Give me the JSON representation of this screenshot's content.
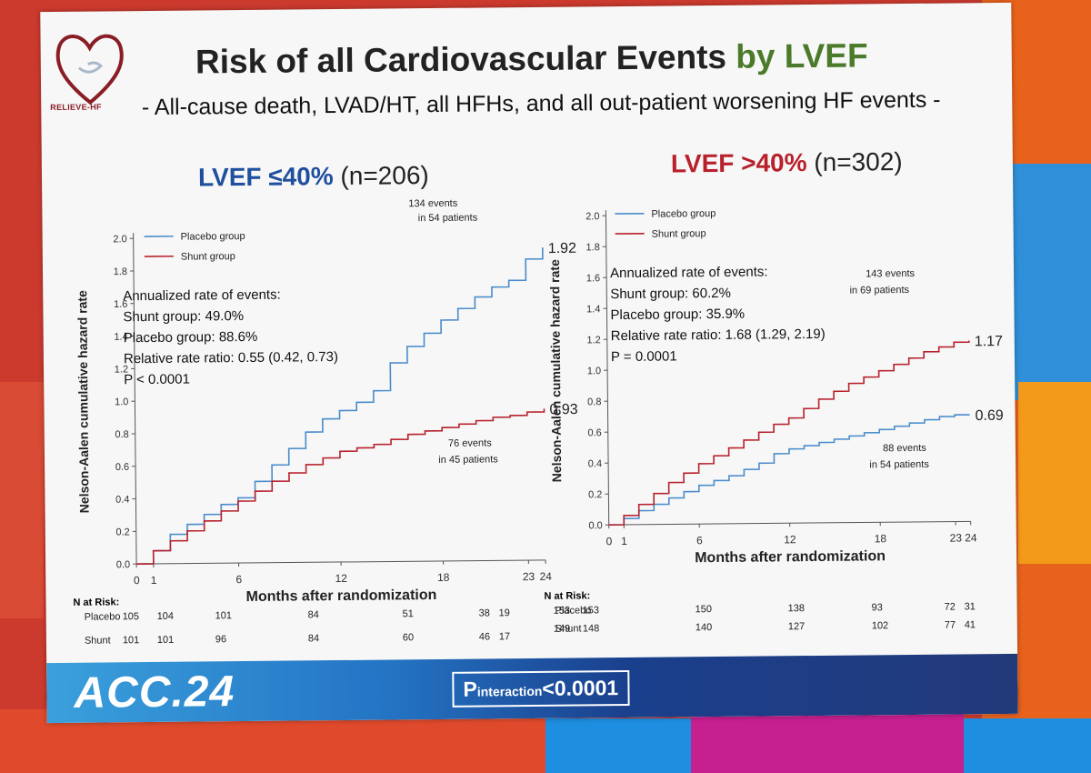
{
  "slide": {
    "logo_text": "RELIEVE-HF",
    "title_main": "Risk of all Cardiovascular Events ",
    "title_highlight": "by LVEF",
    "subtitle": "- All-cause death, LVAD/HT, all HFHs, and all out-patient worsening HF events -",
    "footer_logo": "ACC.24",
    "p_interaction_p": "P",
    "p_interaction_sub": "interaction",
    "p_interaction_value": "<0.0001"
  },
  "colors": {
    "placebo": "#4a8ccc",
    "shunt": "#b8202c",
    "left_title": "#1f4f9e",
    "right_title": "#b8202c"
  },
  "chart_data": [
    {
      "type": "line",
      "title": "LVEF ≤40%",
      "title_n": "(n=206)",
      "xlabel": "Months after randomization",
      "ylabel": "Nelson-Aalen cumulative hazard rate",
      "xlim": [
        0,
        24
      ],
      "ylim": [
        0,
        2.0
      ],
      "xticks": [
        "0",
        "1",
        "6",
        "12",
        "18",
        "23",
        "24"
      ],
      "xtick_values": [
        0,
        1,
        6,
        12,
        18,
        23,
        24
      ],
      "yticks": [
        "0.0",
        "0.2",
        "0.4",
        "0.6",
        "0.8",
        "1.0",
        "1.2",
        "1.4",
        "1.6",
        "1.8",
        "2.0"
      ],
      "legend": [
        "Placebo group",
        "Shunt group"
      ],
      "stats": [
        "Annualized rate of events:",
        "Shunt group: 49.0%",
        "Placebo group: 88.6%",
        "Relative rate ratio: 0.55 (0.42, 0.73)",
        "P < 0.0001"
      ],
      "series": [
        {
          "name": "Placebo group",
          "end_label": "1.92",
          "x": [
            0,
            1,
            2,
            3,
            4,
            5,
            6,
            7,
            8,
            9,
            10,
            11,
            12,
            13,
            14,
            15,
            16,
            17,
            18,
            19,
            20,
            21,
            22,
            23,
            24
          ],
          "y": [
            0,
            0.08,
            0.18,
            0.24,
            0.3,
            0.36,
            0.4,
            0.5,
            0.6,
            0.7,
            0.8,
            0.88,
            0.93,
            0.98,
            1.05,
            1.22,
            1.32,
            1.4,
            1.48,
            1.55,
            1.62,
            1.68,
            1.72,
            1.85,
            1.92
          ]
        },
        {
          "name": "Shunt group",
          "end_label": "0.93",
          "x": [
            0,
            1,
            2,
            3,
            4,
            5,
            6,
            7,
            8,
            9,
            10,
            11,
            12,
            13,
            14,
            15,
            16,
            17,
            18,
            19,
            20,
            21,
            22,
            23,
            24
          ],
          "y": [
            0,
            0.08,
            0.14,
            0.2,
            0.26,
            0.32,
            0.38,
            0.44,
            0.5,
            0.55,
            0.6,
            0.64,
            0.68,
            0.7,
            0.72,
            0.75,
            0.78,
            0.8,
            0.82,
            0.84,
            0.86,
            0.88,
            0.89,
            0.91,
            0.93
          ]
        }
      ],
      "annotations": [
        "134 events",
        "in 54 patients",
        "76 events",
        "in 45 patients"
      ],
      "n_at_risk": {
        "label": "N at Risk:",
        "rows": [
          {
            "group": "Placebo",
            "values": [
              "105",
              "104",
              "101",
              "84",
              "51",
              "38",
              "19"
            ]
          },
          {
            "group": "Shunt",
            "values": [
              "101",
              "101",
              "96",
              "84",
              "60",
              "46",
              "17"
            ]
          }
        ]
      }
    },
    {
      "type": "line",
      "title": "LVEF >40%",
      "title_n": "(n=302)",
      "xlabel": "Months after randomization",
      "ylabel": "Nelson-Aalen cumulative hazard rate",
      "xlim": [
        0,
        24
      ],
      "ylim": [
        0,
        2.0
      ],
      "xticks": [
        "0",
        "1",
        "6",
        "12",
        "18",
        "23",
        "24"
      ],
      "xtick_values": [
        0,
        1,
        6,
        12,
        18,
        23,
        24
      ],
      "yticks": [
        "0.0",
        "0.2",
        "0.4",
        "0.6",
        "0.8",
        "1.0",
        "1.2",
        "1.4",
        "1.6",
        "1.8",
        "2.0"
      ],
      "legend": [
        "Placebo group",
        "Shunt group"
      ],
      "stats": [
        "Annualized rate of events:",
        "Shunt group: 60.2%",
        "Placebo group: 35.9%",
        "Relative rate ratio: 1.68 (1.29, 2.19)",
        "P = 0.0001"
      ],
      "series": [
        {
          "name": "Placebo group",
          "end_label": "0.69",
          "x": [
            0,
            1,
            2,
            3,
            4,
            5,
            6,
            7,
            8,
            9,
            10,
            11,
            12,
            13,
            14,
            15,
            16,
            17,
            18,
            19,
            20,
            21,
            22,
            23,
            24
          ],
          "y": [
            0,
            0.04,
            0.09,
            0.13,
            0.17,
            0.21,
            0.25,
            0.28,
            0.31,
            0.35,
            0.39,
            0.45,
            0.48,
            0.5,
            0.52,
            0.54,
            0.56,
            0.58,
            0.6,
            0.62,
            0.64,
            0.66,
            0.68,
            0.69,
            0.69
          ]
        },
        {
          "name": "Shunt group",
          "end_label": "1.17",
          "x": [
            0,
            1,
            2,
            3,
            4,
            5,
            6,
            7,
            8,
            9,
            10,
            11,
            12,
            13,
            14,
            15,
            16,
            17,
            18,
            19,
            20,
            21,
            22,
            23,
            24
          ],
          "y": [
            0,
            0.06,
            0.13,
            0.2,
            0.27,
            0.33,
            0.39,
            0.44,
            0.49,
            0.54,
            0.59,
            0.64,
            0.68,
            0.74,
            0.8,
            0.85,
            0.9,
            0.94,
            0.98,
            1.02,
            1.06,
            1.1,
            1.13,
            1.16,
            1.17
          ]
        }
      ],
      "annotations": [
        "143 events",
        "in 69 patients",
        "88 events",
        "in 54 patients"
      ],
      "n_at_risk": {
        "label": "N at Risk:",
        "rows": [
          {
            "group": "Placebo",
            "values": [
              "153",
              "153",
              "150",
              "138",
              "93",
              "72",
              "31"
            ]
          },
          {
            "group": "Shunt",
            "values": [
              "149",
              "148",
              "140",
              "127",
              "102",
              "77",
              "41"
            ]
          }
        ]
      }
    }
  ]
}
